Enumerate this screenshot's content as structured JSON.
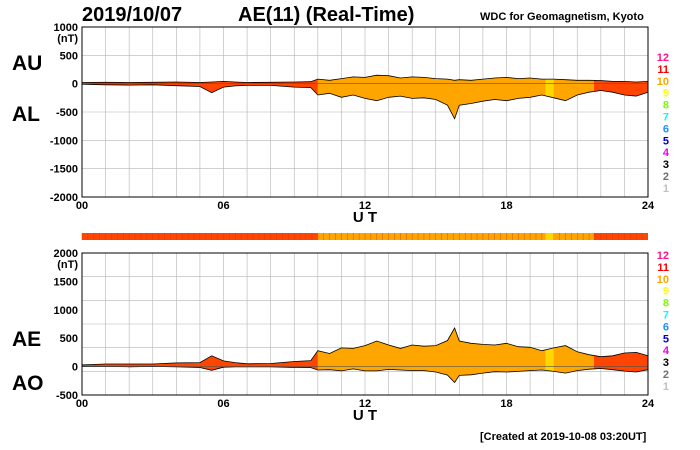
{
  "header": {
    "date": "2019/10/07",
    "title": "AE(11) (Real-Time)",
    "source": "WDC for Geomagnetism, Kyoto",
    "created": "[Created at 2019-10-08 03:20UT]"
  },
  "panel_labels": {
    "au": "AU",
    "al": "AL",
    "ae": "AE",
    "ao": "AO"
  },
  "colors": {
    "fill_main": "#ffa500",
    "fill_few": "#ff4500",
    "fill_bright": "#ffd700",
    "outline": "#000000",
    "grid": "#b4b4b4"
  },
  "legend": [
    {
      "label": "12",
      "color": "#ff1493"
    },
    {
      "label": "11",
      "color": "#ff0000"
    },
    {
      "label": "10",
      "color": "#ffa500"
    },
    {
      "label": "9",
      "color": "#ffff00"
    },
    {
      "label": "8",
      "color": "#7fff00"
    },
    {
      "label": "7",
      "color": "#00ffff"
    },
    {
      "label": "6",
      "color": "#1e90ff"
    },
    {
      "label": "5",
      "color": "#0000cd"
    },
    {
      "label": "4",
      "color": "#ee00ee"
    },
    {
      "label": "3",
      "color": "#000000"
    },
    {
      "label": "2",
      "color": "#707070"
    },
    {
      "label": "1",
      "color": "#c0c0c0"
    }
  ],
  "chart_data": [
    {
      "type": "area",
      "title": "AU / AL",
      "xlabel": "U T",
      "ylabel": "(nT)",
      "xlim": [
        0,
        24
      ],
      "ylim": [
        -2000,
        1000
      ],
      "yticks": [
        1000,
        500,
        0,
        -500,
        -1000,
        -1500,
        -2000
      ],
      "xticks": [
        "00",
        "06",
        "12",
        "18",
        "24"
      ],
      "x_hours": [
        0,
        1,
        2,
        3,
        4,
        5,
        5.5,
        6,
        6.5,
        7,
        8,
        9,
        9.7,
        10,
        10.5,
        11,
        11.5,
        12,
        12.5,
        13,
        13.5,
        14,
        14.5,
        15,
        15.5,
        15.8,
        16,
        16.5,
        17,
        17.5,
        18,
        18.5,
        19,
        19.5,
        20,
        20.5,
        21,
        21.5,
        22,
        22.5,
        23,
        23.5,
        24
      ],
      "series": [
        {
          "name": "AU",
          "values": [
            20,
            25,
            20,
            25,
            30,
            20,
            30,
            40,
            30,
            20,
            25,
            30,
            35,
            80,
            60,
            90,
            120,
            110,
            150,
            140,
            100,
            120,
            110,
            90,
            80,
            60,
            70,
            60,
            80,
            100,
            110,
            90,
            100,
            80,
            80,
            70,
            60,
            60,
            55,
            40,
            40,
            30,
            40
          ]
        },
        {
          "name": "AL",
          "values": [
            -10,
            -20,
            -25,
            -20,
            -35,
            -50,
            -160,
            -60,
            -40,
            -30,
            -30,
            -60,
            -70,
            -200,
            -170,
            -240,
            -200,
            -260,
            -300,
            -240,
            -220,
            -260,
            -250,
            -280,
            -380,
            -620,
            -380,
            -350,
            -310,
            -280,
            -300,
            -260,
            -240,
            -200,
            -250,
            -300,
            -200,
            -150,
            -120,
            -150,
            -200,
            -220,
            -150
          ]
        }
      ]
    },
    {
      "type": "area",
      "title": "AE / AO",
      "xlabel": "U T",
      "ylabel": "(nT)",
      "xlim": [
        0,
        24
      ],
      "ylim": [
        -500,
        2000
      ],
      "yticks": [
        2000,
        1500,
        1000,
        500,
        0,
        -500
      ],
      "xticks": [
        "00",
        "06",
        "12",
        "18",
        "24"
      ],
      "x_hours": [
        0,
        1,
        2,
        3,
        4,
        5,
        5.5,
        6,
        6.5,
        7,
        8,
        9,
        9.7,
        10,
        10.5,
        11,
        11.5,
        12,
        12.5,
        13,
        13.5,
        14,
        14.5,
        15,
        15.5,
        15.8,
        16,
        16.5,
        17,
        17.5,
        18,
        18.5,
        19,
        19.5,
        20,
        20.5,
        21,
        21.5,
        22,
        22.5,
        23,
        23.5,
        24
      ],
      "series": [
        {
          "name": "AE",
          "values": [
            30,
            45,
            45,
            45,
            65,
            70,
            190,
            100,
            70,
            50,
            55,
            90,
            105,
            280,
            230,
            330,
            320,
            370,
            450,
            380,
            320,
            380,
            360,
            370,
            460,
            680,
            450,
            410,
            390,
            380,
            410,
            350,
            340,
            280,
            330,
            370,
            260,
            210,
            175,
            190,
            240,
            250,
            190
          ]
        },
        {
          "name": "AO",
          "values": [
            5,
            3,
            -3,
            3,
            -3,
            -15,
            -65,
            -10,
            -5,
            -5,
            -3,
            -15,
            -18,
            -60,
            -55,
            -75,
            -40,
            -75,
            -75,
            -50,
            -60,
            -70,
            -70,
            -95,
            -150,
            -280,
            -155,
            -145,
            -115,
            -90,
            -95,
            -85,
            -70,
            -60,
            -85,
            -115,
            -70,
            -45,
            -33,
            -55,
            -80,
            -95,
            -55
          ]
        }
      ]
    }
  ],
  "status_bar": {
    "segments": [
      {
        "from": 0,
        "to": 10,
        "level": "11"
      },
      {
        "from": 10,
        "to": 21.7,
        "level": "10"
      },
      {
        "from": 21.7,
        "to": 24,
        "level": "11"
      }
    ]
  }
}
